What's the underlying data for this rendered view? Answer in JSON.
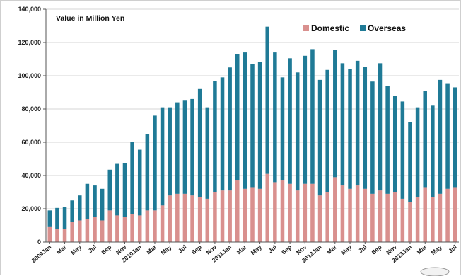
{
  "chart_data": {
    "type": "bar",
    "stacked": true,
    "title": "Value in Million Yen",
    "ylim": [
      0,
      140000
    ],
    "yticks": [
      0,
      20000,
      40000,
      60000,
      80000,
      100000,
      120000,
      140000
    ],
    "ytick_labels": [
      "0",
      "20,000",
      "40,000",
      "60,000",
      "80,000",
      "100,000",
      "120,000",
      "140,000"
    ],
    "grid": true,
    "legend_position": "top-right",
    "colors": {
      "Domestic": "#d9908e",
      "Overseas": "#1f7a96"
    },
    "categories": [
      "2009Jan",
      "Feb",
      "Mar",
      "Apr",
      "May",
      "Jun",
      "Jul",
      "Aug",
      "Sep",
      "Oct",
      "Nov",
      "Dec",
      "2010Jan",
      "Feb",
      "Mar",
      "Apr",
      "May",
      "Jun",
      "Jul",
      "Aug",
      "Sep",
      "Oct",
      "Nov",
      "Dec",
      "2011Jan",
      "Feb",
      "Mar",
      "Apr",
      "May",
      "Jun",
      "Jul",
      "Aug",
      "Sep",
      "Oct",
      "Nov",
      "Dec",
      "2012Jan",
      "Feb",
      "Mar",
      "Apr",
      "May",
      "Jun",
      "Jul",
      "Aug",
      "Sep",
      "Oct",
      "Nov",
      "Dec",
      "2013Jan",
      "Feb",
      "Mar",
      "Apr",
      "May",
      "Jun",
      "Jul"
    ],
    "tick_labels": [
      "2009Jan",
      "Mar",
      "May",
      "Jul",
      "Sep",
      "Nov",
      "2010Jan",
      "Mar",
      "May",
      "Jul",
      "Sep",
      "Nov",
      "2011Jan",
      "Mar",
      "May",
      "Jul",
      "Sep",
      "Nov",
      "2012Jan",
      "Mar",
      "May",
      "Jul",
      "Sep",
      "Nov",
      "2013Jan",
      "Mar",
      "May",
      "Jul"
    ],
    "series": [
      {
        "name": "Domestic",
        "values": [
          9000,
          8000,
          8000,
          12000,
          13000,
          14000,
          15000,
          13000,
          19000,
          16000,
          15000,
          17000,
          16000,
          19000,
          19000,
          22000,
          28000,
          29000,
          29000,
          28000,
          27000,
          26000,
          30000,
          31000,
          31000,
          37000,
          32000,
          33000,
          32000,
          41000,
          36000,
          37000,
          35000,
          31000,
          35000,
          35000,
          28000,
          30000,
          39000,
          34000,
          32000,
          34000,
          32000,
          29000,
          31000,
          29000,
          30000,
          26000,
          24000,
          27000,
          33000,
          27000,
          29000,
          32000,
          33000
        ]
      },
      {
        "name": "Overseas",
        "values": [
          10000,
          12500,
          13000,
          13000,
          15000,
          21000,
          19000,
          19000,
          24500,
          31000,
          32500,
          43000,
          39500,
          46000,
          57000,
          59000,
          53000,
          55000,
          56000,
          58000,
          65000,
          55000,
          67000,
          68000,
          74000,
          76000,
          82000,
          74000,
          76500,
          88500,
          78000,
          62000,
          75500,
          71000,
          77000,
          81000,
          69500,
          73500,
          76500,
          73500,
          72000,
          75000,
          73500,
          67500,
          76500,
          65000,
          58000,
          58500,
          48000,
          54000,
          58000,
          55000,
          68500,
          63500,
          60000
        ]
      }
    ]
  },
  "logo_text": "CHINA"
}
